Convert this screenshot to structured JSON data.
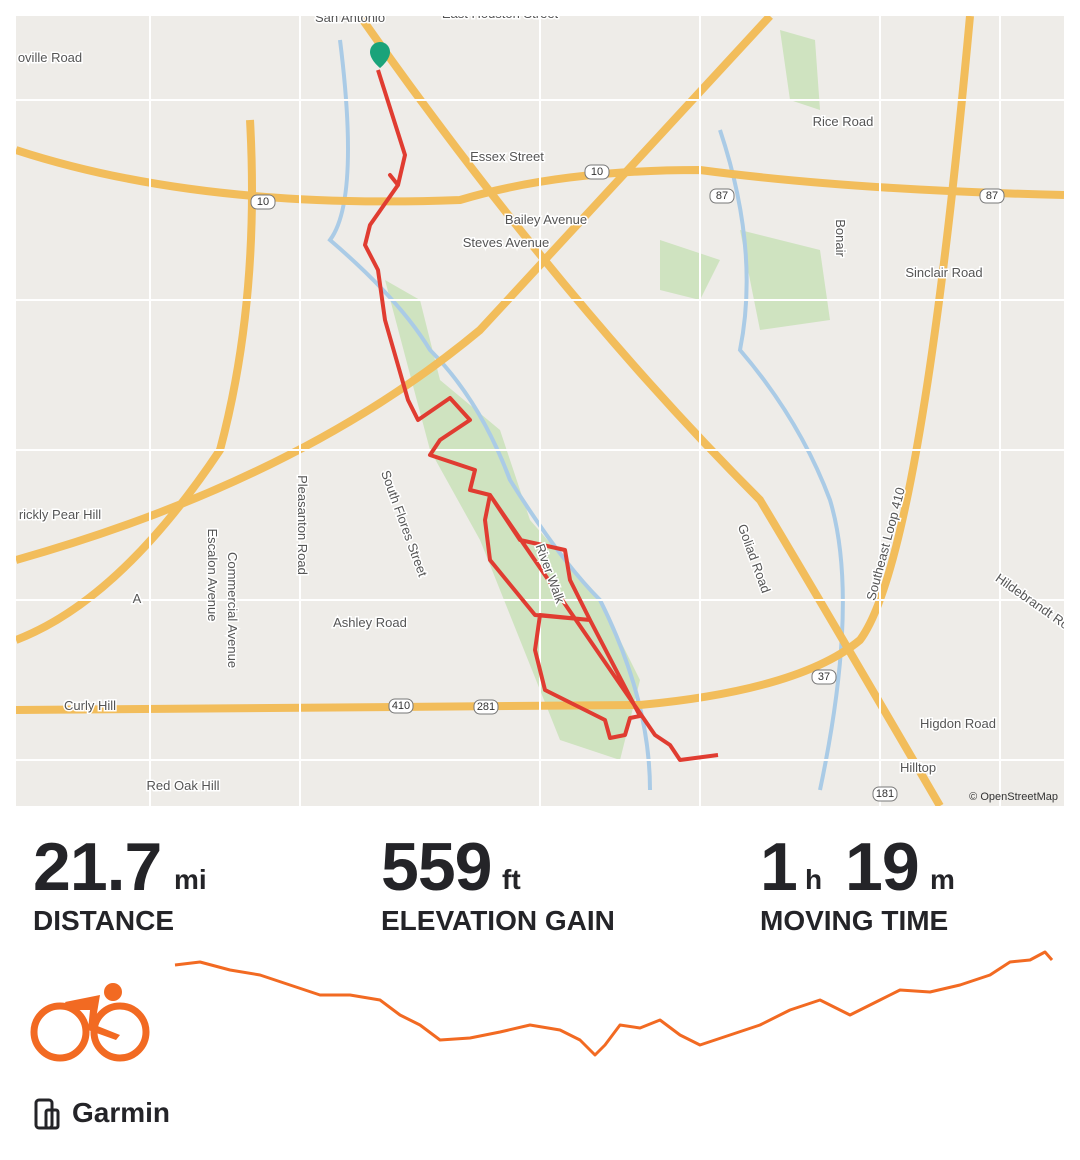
{
  "map": {
    "labels": [
      "San Antonio",
      "East Houston Street",
      "oville Road",
      "Rice Road",
      "Essex Street",
      "10",
      "10",
      "87",
      "87",
      "Bailey Avenue",
      "Steves Avenue",
      "Sinclair Road",
      "Bonair",
      "South Flores Street",
      "Pleasanton Road",
      "Escalon Avenue",
      "Commercial Avenue",
      "rickly Pear Hill",
      "A",
      "Ashley Road",
      "River Walk",
      "Goliad Road",
      "Southeast Loop 410",
      "Hildebrandt Ro",
      "Curly Hill",
      "410",
      "281",
      "37",
      "Higdon Road",
      "Hilltop",
      "181",
      "Red Oak Hill"
    ],
    "attribution": "© OpenStreetMap"
  },
  "stats": [
    {
      "value": 21.7,
      "unit": "mi",
      "label": "DISTANCE"
    },
    {
      "value": 559,
      "unit": "ft",
      "label": "ELEVATION GAIN"
    }
  ],
  "moving_time": {
    "hours": 1,
    "hours_unit": "h",
    "minutes": 19,
    "minutes_unit": "m",
    "label": "MOVING TIME"
  },
  "device": "Garmin"
}
